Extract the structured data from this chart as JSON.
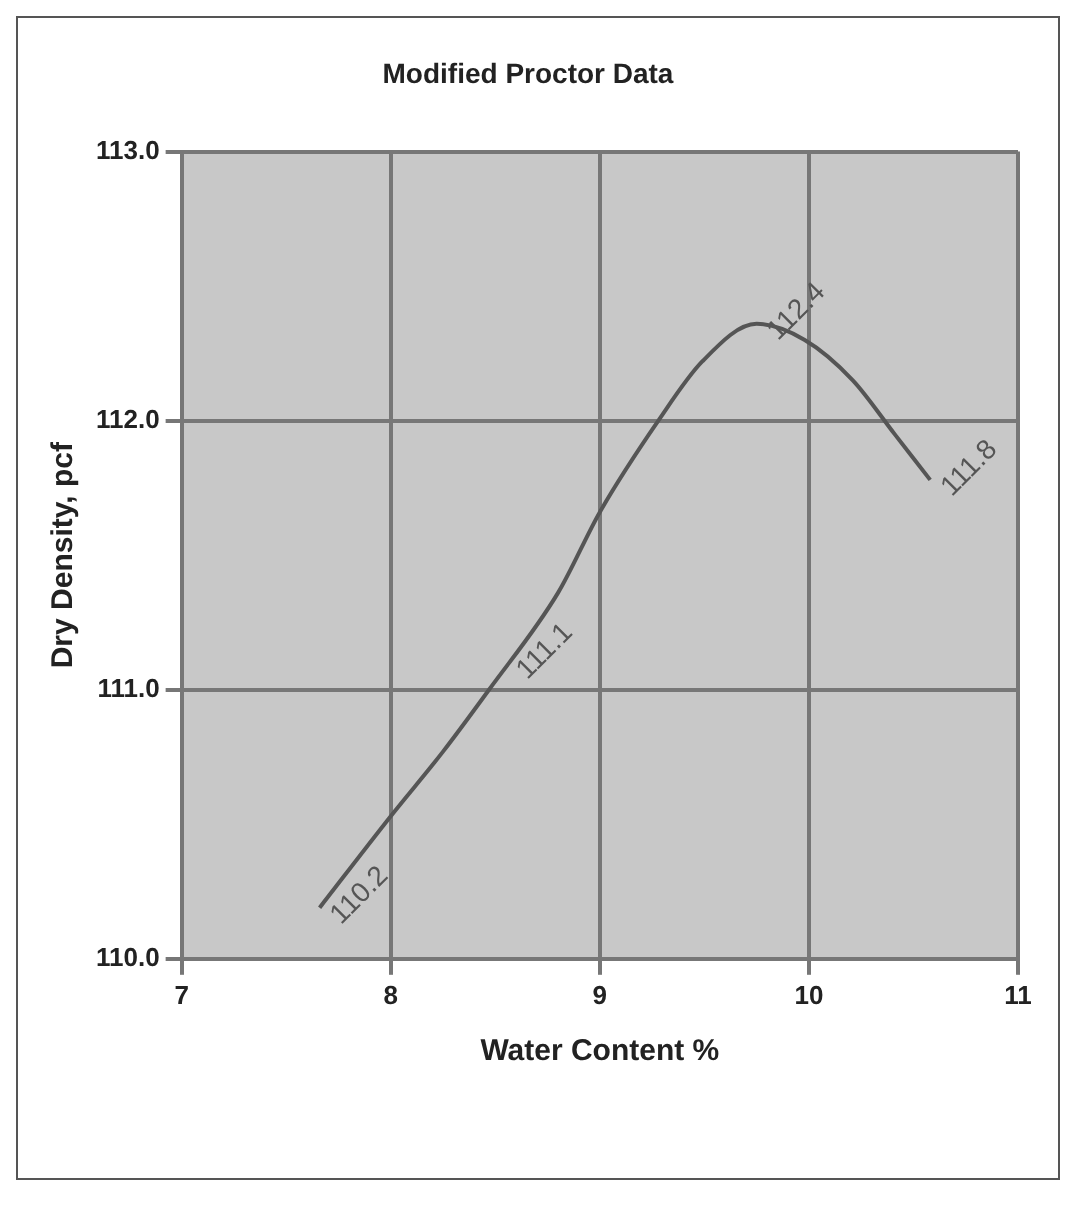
{
  "chart_data": {
    "type": "line",
    "title": "Modified Proctor Data",
    "xlabel": "Water Content %",
    "ylabel": "Dry Density, pcf",
    "series": [
      {
        "color": "#555555",
        "x": [
          7.66,
          8.0,
          8.25,
          8.47,
          8.8,
          9.0,
          9.28,
          9.49,
          9.75,
          9.98,
          10.21,
          10.41,
          10.58
        ],
        "values": [
          110.19,
          110.53,
          110.77,
          111.0,
          111.36,
          111.66,
          112.0,
          112.22,
          112.36,
          112.3,
          112.15,
          111.95,
          111.78
        ]
      }
    ],
    "annotations": [
      {
        "text": "110.2",
        "x": 7.66,
        "y": 110.19
      },
      {
        "text": "111.1",
        "x": 8.55,
        "y": 111.1
      },
      {
        "text": "112.4",
        "x": 9.75,
        "y": 112.36
      },
      {
        "text": "111.8",
        "x": 10.58,
        "y": 111.78
      }
    ],
    "xlim": [
      7,
      11
    ],
    "xticks": [
      7,
      8,
      9,
      10,
      11
    ],
    "ylim": [
      110,
      113
    ],
    "yticks": [
      {
        "value": 110,
        "label": "110.0"
      },
      {
        "value": 111,
        "label": "111.0"
      },
      {
        "value": 112,
        "label": "112.0"
      },
      {
        "value": 113,
        "label": "113.0"
      }
    ],
    "grid": true,
    "legend": false,
    "marker": "none",
    "line_style": "solid"
  }
}
